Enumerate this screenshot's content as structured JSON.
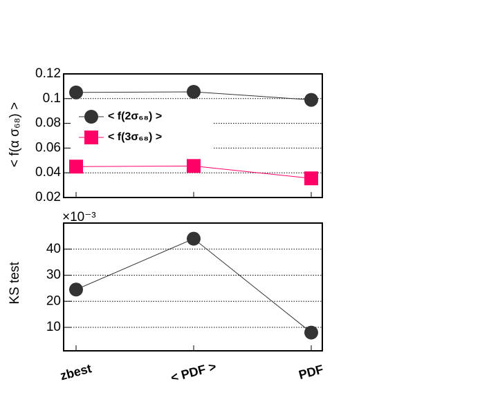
{
  "chart_data": [
    {
      "type": "line",
      "ylabel": "< f(α σ₆₈) >",
      "categories": [
        null,
        null,
        null
      ],
      "series": [
        {
          "name": "< f(2σ₆₈) >",
          "color": "#333333",
          "marker": "circle",
          "values": [
            0.105,
            0.1055,
            0.099
          ]
        },
        {
          "name": "< f(3σ₆₈) >",
          "color": "#ff0066",
          "marker": "square",
          "values": [
            0.045,
            0.0455,
            0.0355
          ]
        }
      ],
      "ylim": [
        0.02,
        0.12
      ],
      "yticks": [
        0.02,
        0.04,
        0.06,
        0.08,
        0.1,
        0.12
      ],
      "grid": true,
      "legend": "upper left"
    },
    {
      "type": "line",
      "ylabel": "KS test",
      "multiplier": "×10⁻³",
      "categories": [
        "zbest",
        "< PDF >",
        "PDF"
      ],
      "series": [
        {
          "color": "#333333",
          "marker": "circle",
          "values": [
            24.5,
            44,
            8
          ]
        }
      ],
      "ylim": [
        1,
        50
      ],
      "yticks": [
        10,
        20,
        30,
        40
      ],
      "grid": true
    }
  ]
}
